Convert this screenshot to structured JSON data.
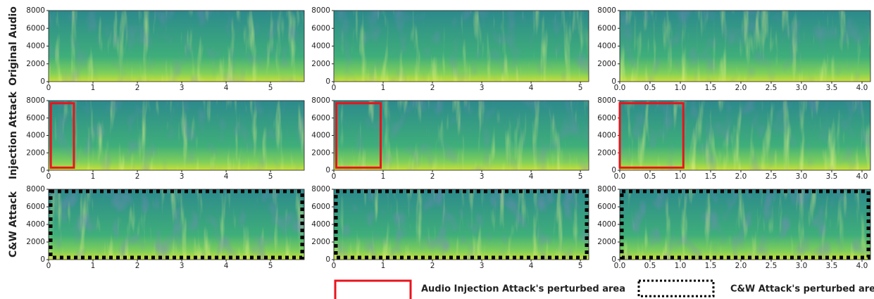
{
  "row_labels": [
    "Original Audio",
    "Injection Attack",
    "C&W Attack"
  ],
  "legend": [
    {
      "label": "Audio Injection Attack's perturbed area",
      "color": "#e8141c",
      "dash": "solid"
    },
    {
      "label": "C&W Attack's perturbed area",
      "color": "#000000",
      "dash": "dotted"
    }
  ],
  "chart_data": [
    {
      "type": "spectrogram",
      "xlim": [
        0,
        5.76
      ],
      "ylim": [
        0,
        8000
      ],
      "xticks": [
        0,
        1,
        2,
        3,
        4,
        5
      ],
      "yticks": [
        0,
        2000,
        4000,
        6000,
        8000
      ]
    },
    {
      "type": "spectrogram",
      "xlim": [
        0,
        5.17
      ],
      "ylim": [
        0,
        8000
      ],
      "xticks": [
        0,
        1,
        2,
        3,
        4,
        5
      ],
      "yticks": [
        0,
        2000,
        4000,
        6000,
        8000
      ]
    },
    {
      "type": "spectrogram",
      "xlim": [
        0,
        4.14
      ],
      "ylim": [
        0,
        8000
      ],
      "xticks": [
        {
          "value": 0,
          "label": "0.0"
        },
        0.5,
        {
          "value": 1,
          "label": "1.0"
        },
        1.5,
        {
          "value": 2,
          "label": "2.0"
        },
        2.5,
        {
          "value": 3,
          "label": "3.0"
        },
        3.5,
        {
          "value": 4,
          "label": "4.0"
        }
      ],
      "yticks": [
        0,
        2000,
        4000,
        6000,
        8000
      ]
    },
    {
      "type": "spectrogram",
      "xlim": [
        0,
        5.76
      ],
      "ylim": [
        0,
        8000
      ],
      "xticks": [
        0,
        1,
        2,
        3,
        4,
        5
      ],
      "yticks": [
        0,
        2000,
        4000,
        6000,
        8000
      ],
      "perturbed_area": 0,
      "perturbed_interval": [
        0.05,
        0.57
      ],
      "perturbed_band": [
        300,
        7700
      ]
    },
    {
      "type": "spectrogram",
      "xlim": [
        0,
        5.17
      ],
      "ylim": [
        0,
        8000
      ],
      "xticks": [
        0,
        1,
        2,
        3,
        4,
        5
      ],
      "yticks": [
        0,
        2000,
        4000,
        6000,
        8000
      ],
      "perturbed_area": 0,
      "perturbed_interval": [
        0.05,
        0.95
      ],
      "perturbed_band": [
        300,
        7700
      ]
    },
    {
      "type": "spectrogram",
      "xlim": [
        0,
        4.14
      ],
      "ylim": [
        0,
        8000
      ],
      "xticks": [
        {
          "value": 0,
          "label": "0.0"
        },
        0.5,
        {
          "value": 1,
          "label": "1.0"
        },
        1.5,
        {
          "value": 2,
          "label": "2.0"
        },
        2.5,
        {
          "value": 3,
          "label": "3.0"
        },
        3.5,
        {
          "value": 4,
          "label": "4.0"
        }
      ],
      "yticks": [
        0,
        2000,
        4000,
        6000,
        8000
      ],
      "perturbed_area": 0,
      "perturbed_interval": [
        0,
        1.05
      ],
      "perturbed_band": [
        300,
        7700
      ]
    },
    {
      "type": "spectrogram",
      "xlim": [
        0,
        5.76
      ],
      "ylim": [
        0,
        8000
      ],
      "xticks": [
        0,
        1,
        2,
        3,
        4,
        5
      ],
      "yticks": [
        0,
        2000,
        4000,
        6000,
        8000
      ],
      "perturbed_area": 1
    },
    {
      "type": "spectrogram",
      "xlim": [
        0,
        5.17
      ],
      "ylim": [
        0,
        8000
      ],
      "xticks": [
        0,
        1,
        2,
        3,
        4,
        5
      ],
      "yticks": [
        0,
        2000,
        4000,
        6000,
        8000
      ],
      "perturbed_area": 1
    },
    {
      "type": "spectrogram",
      "xlim": [
        0,
        4.14
      ],
      "ylim": [
        0,
        8000
      ],
      "xticks": [
        {
          "value": 0,
          "label": "0.0"
        },
        0.5,
        {
          "value": 1,
          "label": "1.0"
        },
        1.5,
        {
          "value": 2,
          "label": "2.0"
        },
        2.5,
        {
          "value": 3,
          "label": "3.0"
        },
        3.5,
        {
          "value": 4,
          "label": "4.0"
        }
      ],
      "yticks": [
        0,
        2000,
        4000,
        6000,
        8000
      ],
      "perturbed_area": 1
    }
  ]
}
